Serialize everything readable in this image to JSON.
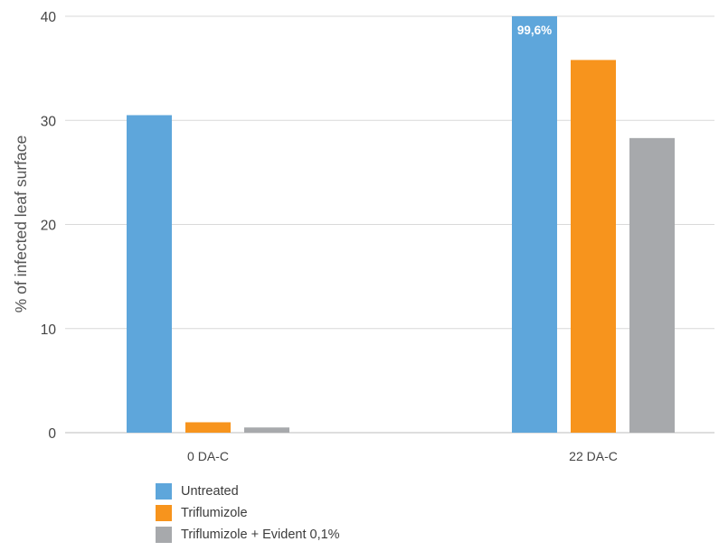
{
  "chart_data": {
    "type": "bar",
    "title": "",
    "xlabel": "",
    "ylabel": "% of infected leaf surface",
    "ylim": [
      0,
      40
    ],
    "yticks": [
      0,
      10,
      20,
      30,
      40
    ],
    "grid": true,
    "legend_position": "bottom-left",
    "categories": [
      "0 DA-C",
      "22 DA-C"
    ],
    "series": [
      {
        "name": "Untreated",
        "color": "#5ea6db",
        "values": [
          30.5,
          40
        ]
      },
      {
        "name": "Triflumizole",
        "color": "#f7941d",
        "values": [
          1.0,
          35.8
        ]
      },
      {
        "name": "Triflumizole + Evident 0,1%",
        "color": "#a7a9ac",
        "values": [
          0.5,
          28.3
        ]
      }
    ],
    "annotations": [
      {
        "series": 0,
        "category": 1,
        "text": "99,6%"
      }
    ]
  }
}
